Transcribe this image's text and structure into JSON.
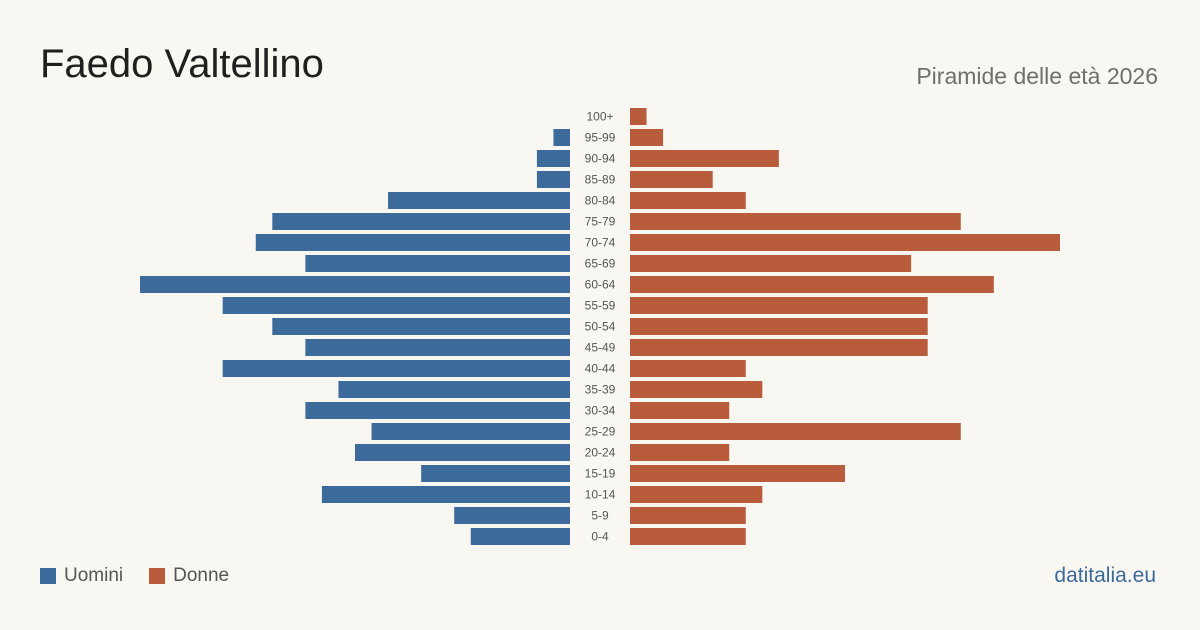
{
  "header": {
    "title": "Faedo Valtellino",
    "subtitle": "Piramide delle età 2026"
  },
  "legend": {
    "men_label": "Uomini",
    "women_label": "Donne"
  },
  "source": {
    "label": "datitalia.eu"
  },
  "colors": {
    "men": "#3b6a9b",
    "women": "#b85c3c",
    "background": "#f9f7f2",
    "tick_text": "#555555"
  },
  "chart_data": {
    "type": "bar",
    "orientation": "horizontal-pyramid",
    "categories": [
      "100+",
      "95-99",
      "90-94",
      "85-89",
      "80-84",
      "75-79",
      "70-74",
      "65-69",
      "60-64",
      "55-59",
      "50-54",
      "45-49",
      "40-44",
      "35-39",
      "30-34",
      "25-29",
      "20-24",
      "15-19",
      "10-14",
      "5-9",
      "0-4"
    ],
    "series": [
      {
        "name": "Uomini",
        "values": [
          0,
          1,
          2,
          2,
          11,
          18,
          19,
          16,
          26,
          21,
          18,
          16,
          21,
          14,
          16,
          12,
          13,
          9,
          15,
          7,
          6
        ]
      },
      {
        "name": "Donne",
        "values": [
          1,
          2,
          9,
          5,
          7,
          20,
          26,
          17,
          22,
          18,
          18,
          18,
          7,
          8,
          6,
          20,
          6,
          13,
          8,
          7,
          7
        ]
      }
    ],
    "title": "",
    "xlabel": "",
    "ylabel": "",
    "xlim": [
      0,
      26
    ],
    "legend_position": "bottom-left",
    "grid": false
  }
}
